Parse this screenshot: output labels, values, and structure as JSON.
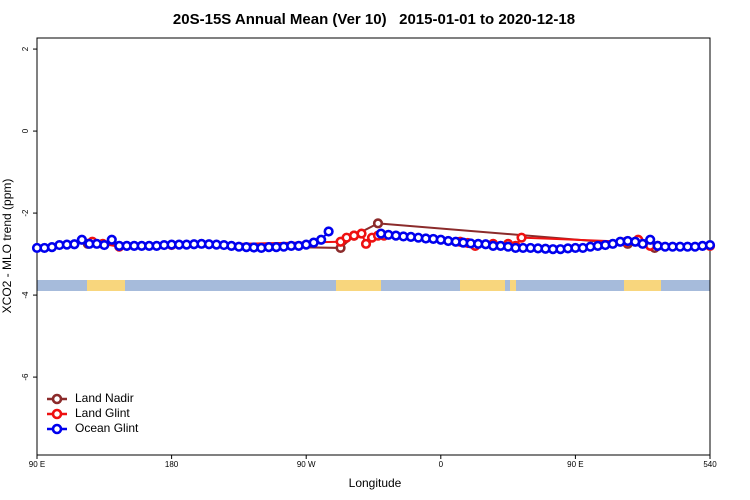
{
  "chart_data": {
    "type": "line",
    "title": "20S-15S Annual Mean (Ver 10)   2015-01-01 to 2020-12-18",
    "xlabel": "Longitude",
    "ylabel": "XCO2 - MLO trend (ppm)",
    "xlim": [
      90,
      540
    ],
    "ylim": [
      -7.9,
      2.27
    ],
    "xticks": [
      {
        "value": 90,
        "label": "90 E"
      },
      180,
      {
        "value": 270,
        "label": "90 W"
      },
      {
        "value": 360,
        "label": "0"
      },
      {
        "value": 450,
        "label": "90 E"
      },
      540
    ],
    "yticks": [
      -6,
      -4,
      -2,
      0,
      2
    ],
    "legend": "bottom-left",
    "series": [
      {
        "name": "Land Nadir",
        "color": "#8b2b2b",
        "x": [
          124,
          293,
          302,
          318,
          485,
          503
        ],
        "values": [
          -2.75,
          -2.85,
          -2.55,
          -2.25,
          -2.75,
          -2.85
        ]
      },
      {
        "name": "Land Glint",
        "color": "#ee1111",
        "x": [
          127,
          134,
          145,
          180,
          293,
          297,
          302,
          307,
          310,
          314,
          318,
          322,
          373,
          378,
          383,
          395,
          405,
          410,
          414,
          484,
          492,
          500,
          505,
          540
        ],
        "values": [
          -2.7,
          -2.75,
          -2.82,
          -2.78,
          -2.7,
          -2.6,
          -2.55,
          -2.5,
          -2.75,
          -2.6,
          -2.55,
          -2.55,
          -2.7,
          -2.73,
          -2.8,
          -2.75,
          -2.75,
          -2.8,
          -2.6,
          -2.7,
          -2.65,
          -2.8,
          -2.8,
          -2.8
        ]
      },
      {
        "name": "Ocean Glint",
        "color": "#0000ee",
        "x": [
          90,
          95,
          100,
          105,
          110,
          115,
          120,
          125,
          130,
          135,
          140,
          145,
          150,
          155,
          160,
          165,
          170,
          175,
          180,
          185,
          190,
          195,
          200,
          205,
          210,
          215,
          220,
          225,
          230,
          235,
          240,
          245,
          250,
          255,
          260,
          265,
          270,
          275,
          280,
          285,
          290,
          295,
          300,
          305,
          310,
          315,
          320,
          325,
          330,
          335,
          340,
          345,
          350,
          355,
          360,
          365,
          370,
          375,
          380,
          385,
          390,
          395,
          400,
          405,
          410,
          415,
          420,
          425,
          430,
          435,
          440,
          445,
          450,
          455,
          460,
          465,
          470,
          475,
          480,
          485,
          490,
          495,
          500,
          505,
          510,
          515,
          520,
          525,
          530,
          535,
          540
        ],
        "values": [
          -2.85,
          -2.85,
          -2.83,
          -2.78,
          -2.77,
          -2.76,
          -2.65,
          -2.75,
          -2.75,
          -2.78,
          -2.65,
          -2.8,
          -2.8,
          -2.8,
          -2.8,
          -2.8,
          -2.8,
          -2.78,
          -2.77,
          -2.77,
          -2.77,
          -2.76,
          -2.75,
          -2.76,
          -2.77,
          -2.78,
          -2.8,
          -2.82,
          -2.83,
          -2.84,
          -2.85,
          -2.83,
          -2.83,
          -2.82,
          -2.8,
          -2.8,
          -2.77,
          -2.72,
          -2.65,
          -2.45,
          null,
          null,
          null,
          null,
          null,
          null,
          -2.5,
          -2.53,
          -2.55,
          -2.57,
          -2.58,
          -2.6,
          -2.62,
          -2.63,
          -2.65,
          -2.68,
          -2.7,
          -2.72,
          -2.74,
          -2.75,
          -2.76,
          -2.8,
          -2.8,
          -2.82,
          -2.85,
          -2.85,
          -2.85,
          -2.86,
          -2.87,
          -2.88,
          -2.88,
          -2.86,
          -2.85,
          -2.85,
          -2.82,
          -2.8,
          -2.78,
          -2.75,
          -2.7,
          -2.68,
          -2.7,
          -2.75,
          -2.65,
          -2.8,
          -2.82,
          -2.82,
          -2.82,
          -2.82,
          -2.82,
          -2.8,
          -2.78
        ]
      }
    ]
  }
}
